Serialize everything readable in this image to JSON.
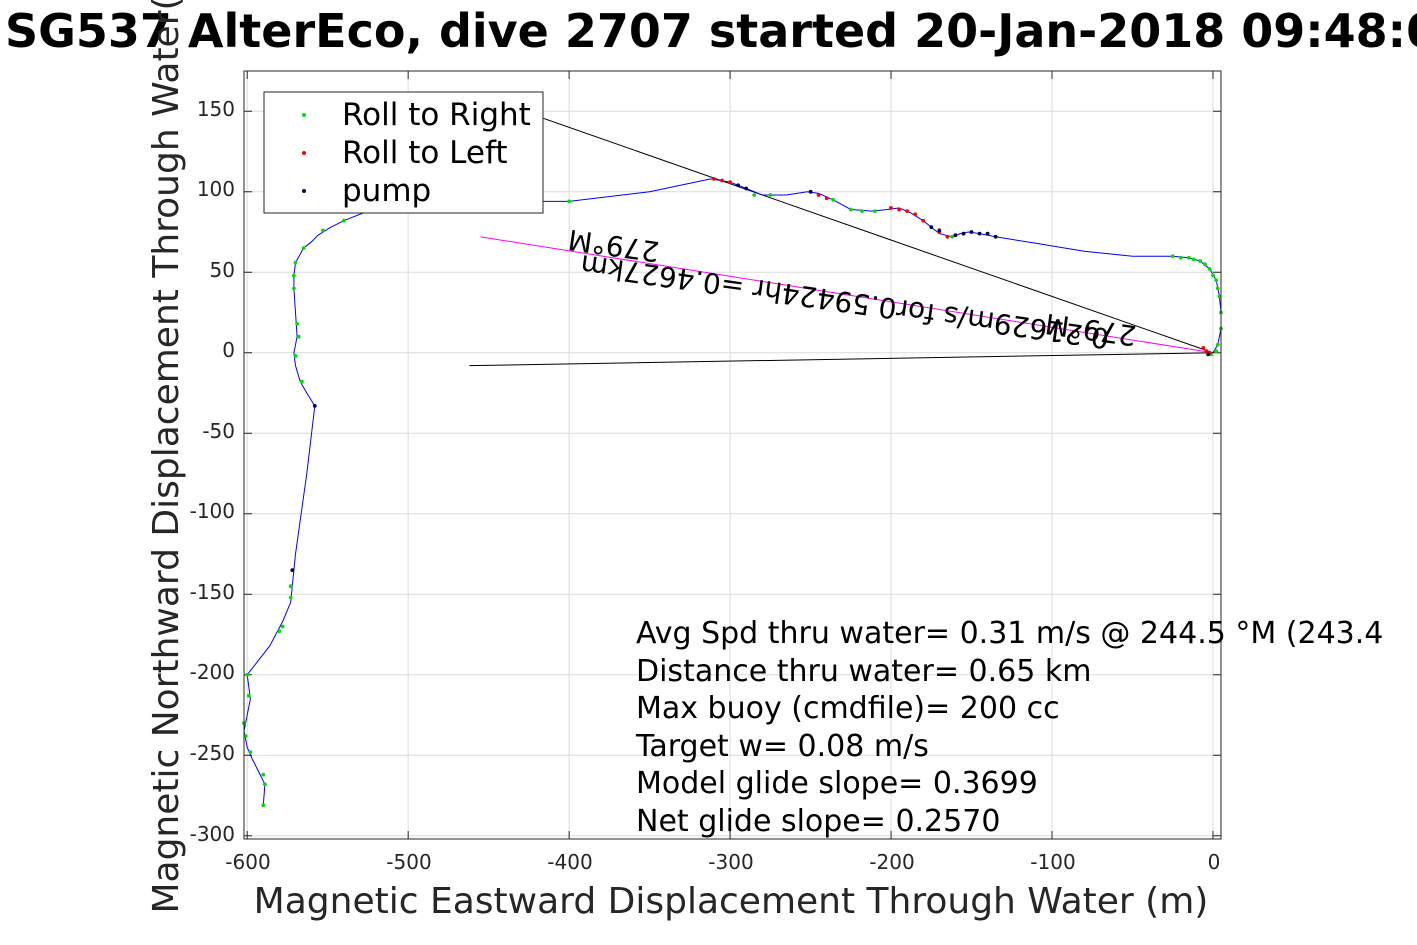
{
  "chart_data": {
    "type": "line",
    "title": "SG537 AlterEco, dive 2707 started 20-Jan-2018 09:48:0",
    "xlabel": "Magnetic Eastward Displacement Through Water (m)",
    "ylabel": "Magnetic Northward Displacement Through Water(",
    "xlim": [
      -602,
      5
    ],
    "ylim": [
      -302,
      175
    ],
    "xticks": [
      -600,
      -500,
      -400,
      -300,
      -200,
      -100,
      0
    ],
    "yticks": [
      -300,
      -250,
      -200,
      -150,
      -100,
      -50,
      0,
      50,
      100,
      150
    ],
    "grid": true,
    "legend": {
      "position": "top-left",
      "entries": [
        {
          "label": "Roll to Right",
          "color": "#00dd00"
        },
        {
          "label": "Roll to Left",
          "color": "#ff0000"
        },
        {
          "label": "pump",
          "color": "#00004d"
        }
      ]
    },
    "track_color": "#0000ff",
    "track": [
      [
        0,
        0
      ],
      [
        3,
        5
      ],
      [
        5,
        15
      ],
      [
        5,
        25
      ],
      [
        4,
        35
      ],
      [
        2,
        45
      ],
      [
        -2,
        52
      ],
      [
        -8,
        57
      ],
      [
        -15,
        59
      ],
      [
        -25,
        60
      ],
      [
        -50,
        60
      ],
      [
        -80,
        63
      ],
      [
        -110,
        68
      ],
      [
        -135,
        72
      ],
      [
        -145,
        74
      ],
      [
        -152,
        75
      ],
      [
        -157,
        74
      ],
      [
        -162,
        72
      ],
      [
        -170,
        74
      ],
      [
        -180,
        82
      ],
      [
        -188,
        87
      ],
      [
        -195,
        90
      ],
      [
        -202,
        89
      ],
      [
        -212,
        88
      ],
      [
        -225,
        89
      ],
      [
        -236,
        95
      ],
      [
        -245,
        99
      ],
      [
        -252,
        100
      ],
      [
        -265,
        98
      ],
      [
        -280,
        98
      ],
      [
        -290,
        102
      ],
      [
        -300,
        106
      ],
      [
        -312,
        108
      ],
      [
        -350,
        100
      ],
      [
        -400,
        94
      ],
      [
        -440,
        94
      ],
      [
        -480,
        94
      ],
      [
        -520,
        90
      ],
      [
        -540,
        82
      ],
      [
        -548,
        78
      ],
      [
        -556,
        73
      ],
      [
        -560,
        69
      ],
      [
        -565,
        65
      ],
      [
        -570,
        56
      ],
      [
        -571,
        48
      ],
      [
        -571,
        40
      ],
      [
        -570,
        25
      ],
      [
        -569,
        10
      ],
      [
        -571,
        0
      ],
      [
        -570,
        -8
      ],
      [
        -567,
        -18
      ],
      [
        -563,
        -25
      ],
      [
        -558,
        -33
      ],
      [
        -563,
        -75
      ],
      [
        -570,
        -125
      ],
      [
        -572,
        -145
      ],
      [
        -573,
        -155
      ],
      [
        -578,
        -167
      ],
      [
        -586,
        -182
      ],
      [
        -600,
        -200
      ],
      [
        -598,
        -215
      ],
      [
        -600,
        -225
      ],
      [
        -602,
        -235
      ],
      [
        -600,
        -245
      ],
      [
        -597,
        -252
      ],
      [
        -593,
        -260
      ],
      [
        -589,
        -268
      ],
      [
        -590,
        -281
      ]
    ],
    "roll_right": [
      [
        -1,
        -1
      ],
      [
        2,
        1
      ],
      [
        3,
        5
      ],
      [
        5,
        15
      ],
      [
        5,
        25
      ],
      [
        4,
        35
      ],
      [
        3,
        40
      ],
      [
        2,
        45
      ],
      [
        0,
        48
      ],
      [
        -2,
        52
      ],
      [
        -5,
        55
      ],
      [
        -8,
        57
      ],
      [
        -12,
        58
      ],
      [
        -15,
        59
      ],
      [
        -20,
        59
      ],
      [
        -25,
        60
      ],
      [
        -155,
        74
      ],
      [
        -162,
        72
      ],
      [
        -210,
        88
      ],
      [
        -218,
        88
      ],
      [
        -225,
        89
      ],
      [
        -236,
        95
      ],
      [
        -275,
        98
      ],
      [
        -285,
        98
      ],
      [
        -400,
        94
      ],
      [
        -540,
        82
      ],
      [
        -553,
        76
      ],
      [
        -565,
        65
      ],
      [
        -570,
        56
      ],
      [
        -571,
        48
      ],
      [
        -571,
        40
      ],
      [
        -569,
        18
      ],
      [
        -568,
        10
      ],
      [
        -570,
        -2
      ],
      [
        -566,
        -18
      ],
      [
        -573,
        -145
      ],
      [
        -573,
        -152
      ],
      [
        -578,
        -170
      ],
      [
        -580,
        -173
      ],
      [
        -600,
        -200
      ],
      [
        -599,
        -213
      ],
      [
        -602,
        -230
      ],
      [
        -601,
        -238
      ],
      [
        -598,
        -248
      ],
      [
        -590,
        -262
      ],
      [
        -589,
        -268
      ],
      [
        -590,
        -281
      ]
    ],
    "roll_left": [
      [
        -2,
        0
      ],
      [
        -4,
        1
      ],
      [
        -6,
        3
      ],
      [
        -300,
        106
      ],
      [
        -305,
        107
      ],
      [
        -310,
        108
      ],
      [
        -250,
        100
      ],
      [
        -245,
        98
      ],
      [
        -240,
        96
      ],
      [
        -200,
        90
      ],
      [
        -195,
        89
      ],
      [
        -190,
        88
      ],
      [
        -185,
        86
      ],
      [
        -180,
        82
      ],
      [
        -170,
        75
      ],
      [
        -165,
        72
      ]
    ],
    "pump": [
      [
        -3,
        -1
      ],
      [
        -135,
        72
      ],
      [
        -140,
        74
      ],
      [
        -145,
        74
      ],
      [
        -150,
        75
      ],
      [
        -155,
        74
      ],
      [
        -160,
        73
      ],
      [
        -170,
        76
      ],
      [
        -175,
        78
      ],
      [
        -290,
        102
      ],
      [
        -295,
        104
      ],
      [
        -250,
        100
      ],
      [
        -558,
        -33
      ],
      [
        -572,
        -135
      ]
    ],
    "lines": [
      {
        "name": "current",
        "from": [
          -420,
          147
        ],
        "to": [
          0,
          0
        ],
        "color": "#000000"
      },
      {
        "name": "average",
        "from": [
          -455,
          72
        ],
        "to": [
          0,
          0
        ],
        "color": "#ff00ff"
      },
      {
        "name": "heading",
        "from": [
          -462,
          -8
        ],
        "to": [
          0,
          0
        ],
        "color": "#000000"
      }
    ],
    "annotations": {
      "heading_far": "279°M",
      "distance": "0.21629m/s for0.59424hr =0.4627km",
      "heading_near": "279°M",
      "stats": [
        "Avg Spd thru water=  0.31 m/s @ 244.5 °M (243.4",
        "Distance thru water=  0.65 km",
        "Max buoy (cmdfile)= 200 cc",
        "Target w= 0.08 m/s",
        "Model glide slope= 0.3699",
        "Net glide slope= 0.2570"
      ]
    }
  }
}
